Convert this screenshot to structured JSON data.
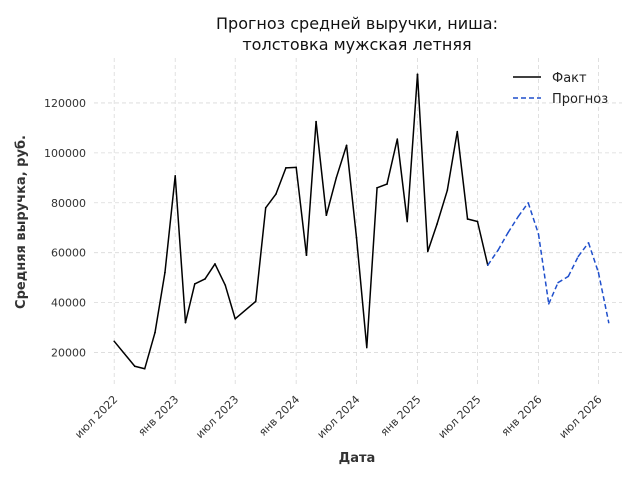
{
  "chart_data": {
    "type": "line",
    "title_lines": [
      "Прогноз средней выручки, ниша:",
      "толстовка мужская летняя"
    ],
    "xlabel": "Дата",
    "ylabel": "Средняя выручка, руб.",
    "x_ticks": [
      {
        "date": "2022-07-01",
        "label": "июл 2022"
      },
      {
        "date": "2023-01-01",
        "label": "янв 2023"
      },
      {
        "date": "2023-07-01",
        "label": "июл 2023"
      },
      {
        "date": "2024-01-01",
        "label": "янв 2024"
      },
      {
        "date": "2024-07-01",
        "label": "июл 2024"
      },
      {
        "date": "2025-01-01",
        "label": "янв 2025"
      },
      {
        "date": "2025-07-01",
        "label": "июл 2025"
      },
      {
        "date": "2026-01-01",
        "label": "янв 2026"
      },
      {
        "date": "2026-07-01",
        "label": "июл 2026"
      }
    ],
    "y_ticks": [
      {
        "value": 20000,
        "label": "20000"
      },
      {
        "value": 40000,
        "label": "40000"
      },
      {
        "value": 60000,
        "label": "60000"
      },
      {
        "value": 80000,
        "label": "80000"
      },
      {
        "value": 100000,
        "label": "100000"
      },
      {
        "value": 120000,
        "label": "120000"
      }
    ],
    "xlim": [
      "2022-05-01",
      "2026-09-10"
    ],
    "ylim": [
      7000,
      138000
    ],
    "grid": true,
    "legend_position": "top-right",
    "series": [
      {
        "name": "Факт",
        "color": "#000000",
        "style": "solid",
        "points": [
          {
            "x": "2022-07-01",
            "y": 24500
          },
          {
            "x": "2022-09-01",
            "y": 14500
          },
          {
            "x": "2022-10-01",
            "y": 13500
          },
          {
            "x": "2022-11-01",
            "y": 28000
          },
          {
            "x": "2022-12-01",
            "y": 52000
          },
          {
            "x": "2023-01-01",
            "y": 90800
          },
          {
            "x": "2023-02-01",
            "y": 32000
          },
          {
            "x": "2023-03-01",
            "y": 47500
          },
          {
            "x": "2023-04-01",
            "y": 49500
          },
          {
            "x": "2023-05-01",
            "y": 55500
          },
          {
            "x": "2023-06-01",
            "y": 47000
          },
          {
            "x": "2023-07-01",
            "y": 33500
          },
          {
            "x": "2023-09-01",
            "y": 40500
          },
          {
            "x": "2023-10-01",
            "y": 78000
          },
          {
            "x": "2023-11-01",
            "y": 83500
          },
          {
            "x": "2023-12-01",
            "y": 94000
          },
          {
            "x": "2024-01-01",
            "y": 94200
          },
          {
            "x": "2024-02-01",
            "y": 59000
          },
          {
            "x": "2024-03-01",
            "y": 112500
          },
          {
            "x": "2024-04-01",
            "y": 75000
          },
          {
            "x": "2024-05-01",
            "y": 90000
          },
          {
            "x": "2024-06-01",
            "y": 103000
          },
          {
            "x": "2024-07-01",
            "y": 66000
          },
          {
            "x": "2024-08-01",
            "y": 22000
          },
          {
            "x": "2024-09-01",
            "y": 86000
          },
          {
            "x": "2024-10-01",
            "y": 87500
          },
          {
            "x": "2024-11-01",
            "y": 105500
          },
          {
            "x": "2024-12-01",
            "y": 72500
          },
          {
            "x": "2025-01-01",
            "y": 131500
          },
          {
            "x": "2025-02-01",
            "y": 60500
          },
          {
            "x": "2025-03-01",
            "y": 71500
          },
          {
            "x": "2025-04-01",
            "y": 85000
          },
          {
            "x": "2025-05-01",
            "y": 108500
          },
          {
            "x": "2025-06-01",
            "y": 73500
          },
          {
            "x": "2025-07-01",
            "y": 72500
          },
          {
            "x": "2025-08-01",
            "y": 55000
          }
        ]
      },
      {
        "name": "Прогноз",
        "color": "#1f4fcc",
        "style": "dashed",
        "points": [
          {
            "x": "2025-08-01",
            "y": 55000
          },
          {
            "x": "2025-09-01",
            "y": 61000
          },
          {
            "x": "2025-10-01",
            "y": 68000
          },
          {
            "x": "2025-11-01",
            "y": 74500
          },
          {
            "x": "2025-12-01",
            "y": 80000
          },
          {
            "x": "2026-01-01",
            "y": 67500
          },
          {
            "x": "2026-02-01",
            "y": 39500
          },
          {
            "x": "2026-03-01",
            "y": 48000
          },
          {
            "x": "2026-04-01",
            "y": 50500
          },
          {
            "x": "2026-05-01",
            "y": 58500
          },
          {
            "x": "2026-06-01",
            "y": 64000
          },
          {
            "x": "2026-07-01",
            "y": 52000
          },
          {
            "x": "2026-08-01",
            "y": 32000
          }
        ]
      }
    ]
  }
}
